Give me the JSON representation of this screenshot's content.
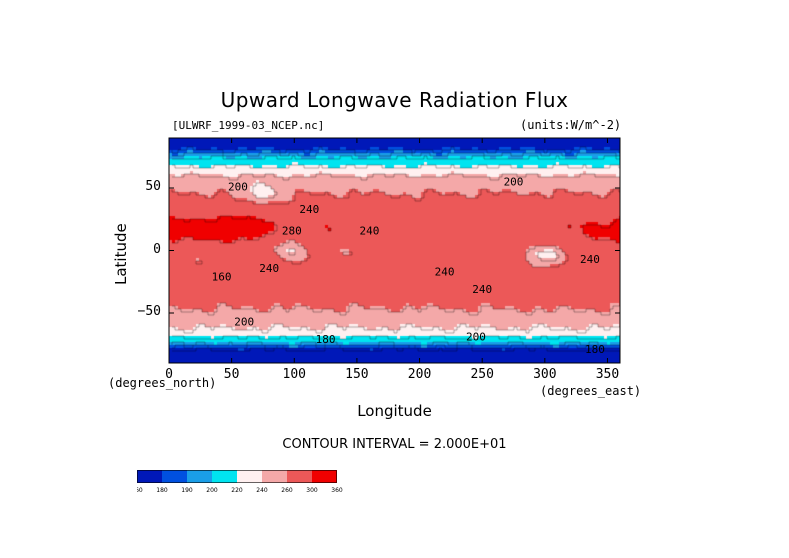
{
  "chart_data": {
    "type": "heatmap",
    "title": "Upward Longwave Radiation Flux",
    "dataset_label": "[ULWRF_1999-03_NCEP.nc]",
    "units_label": "(units:W/m^-2)",
    "xlabel": "Longitude",
    "ylabel": "Latitude",
    "x_unit_note": "(degrees_east)",
    "y_unit_note": "(degrees_north)",
    "xlim": [
      0,
      360
    ],
    "ylim": [
      -90,
      90
    ],
    "x_ticks": [
      0,
      50,
      100,
      150,
      200,
      250,
      300,
      350
    ],
    "x_tick_labels": [
      "0",
      "50",
      "100",
      "150",
      "200",
      "250",
      "300",
      "350"
    ],
    "y_ticks": [
      50,
      0,
      -50
    ],
    "y_tick_labels": [
      "50",
      "0",
      "−50"
    ],
    "contour_interval_text": "CONTOUR INTERVAL = 2.000E+01",
    "colorbar_levels": [
      160,
      180,
      190,
      200,
      220,
      240,
      260,
      300,
      360
    ],
    "colorbar_labels": [
      "160",
      "180",
      "190",
      "200",
      "220",
      "240",
      "260",
      "300",
      "360"
    ],
    "colorbar_colors": [
      "#0018b8",
      "#0050e0",
      "#1a9ee8",
      "#00e4f0",
      "#fff0f0",
      "#f4a8a8",
      "#ec5858",
      "#f00000"
    ],
    "contour_labels": [
      {
        "text": "200",
        "lon": 55,
        "lat": 48
      },
      {
        "text": "240",
        "lon": 112,
        "lat": 30
      },
      {
        "text": "240",
        "lon": 160,
        "lat": 13
      },
      {
        "text": "280",
        "lon": 98,
        "lat": 13
      },
      {
        "text": "200",
        "lon": 275,
        "lat": 52
      },
      {
        "text": "240",
        "lon": 80,
        "lat": -17
      },
      {
        "text": "160",
        "lon": 42,
        "lat": -24
      },
      {
        "text": "240",
        "lon": 220,
        "lat": -20
      },
      {
        "text": "240",
        "lon": 250,
        "lat": -34
      },
      {
        "text": "240",
        "lon": 336,
        "lat": -10
      },
      {
        "text": "200",
        "lon": 60,
        "lat": -60
      },
      {
        "text": "180",
        "lon": 125,
        "lat": -74
      },
      {
        "text": "200",
        "lon": 245,
        "lat": -72
      },
      {
        "text": "180",
        "lon": 340,
        "lat": -82
      }
    ]
  }
}
